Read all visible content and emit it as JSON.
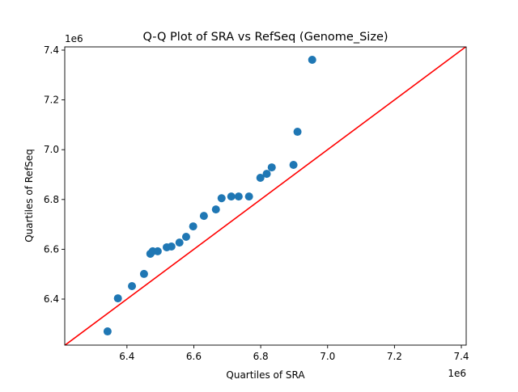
{
  "chart_data": {
    "type": "scatter",
    "title": "Q-Q Plot of SRA vs RefSeq (Genome_Size)",
    "xlabel": "Quartiles of SRA",
    "ylabel": "Quartiles of RefSeq",
    "x_offset_label": "1e6",
    "y_offset_label": "1e6",
    "xlim": [
      6.214,
      7.4145
    ],
    "ylim": [
      6.215,
      7.413
    ],
    "xticks": [
      6.4,
      6.6,
      6.8,
      7.0,
      7.2,
      7.4
    ],
    "yticks": [
      6.4,
      6.6,
      6.8,
      7.0,
      7.2,
      7.4
    ],
    "xtick_labels": [
      "6.4",
      "6.6",
      "6.8",
      "7.0",
      "7.2",
      "7.4"
    ],
    "ytick_labels": [
      "6.4",
      "6.6",
      "6.8",
      "7.0",
      "7.2",
      "7.4"
    ],
    "grid": false,
    "point_color": "#1f77b4",
    "reference_line": {
      "type": "y=x",
      "color": "#ff0000"
    },
    "points": [
      [
        6.342,
        6.27
      ],
      [
        6.373,
        6.403
      ],
      [
        6.415,
        6.452
      ],
      [
        6.451,
        6.501
      ],
      [
        6.47,
        6.582
      ],
      [
        6.477,
        6.592
      ],
      [
        6.492,
        6.592
      ],
      [
        6.519,
        6.608
      ],
      [
        6.533,
        6.611
      ],
      [
        6.557,
        6.627
      ],
      [
        6.577,
        6.65
      ],
      [
        6.598,
        6.692
      ],
      [
        6.63,
        6.734
      ],
      [
        6.666,
        6.76
      ],
      [
        6.683,
        6.805
      ],
      [
        6.712,
        6.812
      ],
      [
        6.734,
        6.812
      ],
      [
        6.765,
        6.812
      ],
      [
        6.799,
        6.887
      ],
      [
        6.818,
        6.903
      ],
      [
        6.833,
        6.929
      ],
      [
        6.898,
        6.939
      ],
      [
        6.91,
        7.072
      ],
      [
        6.954,
        7.361
      ]
    ]
  }
}
